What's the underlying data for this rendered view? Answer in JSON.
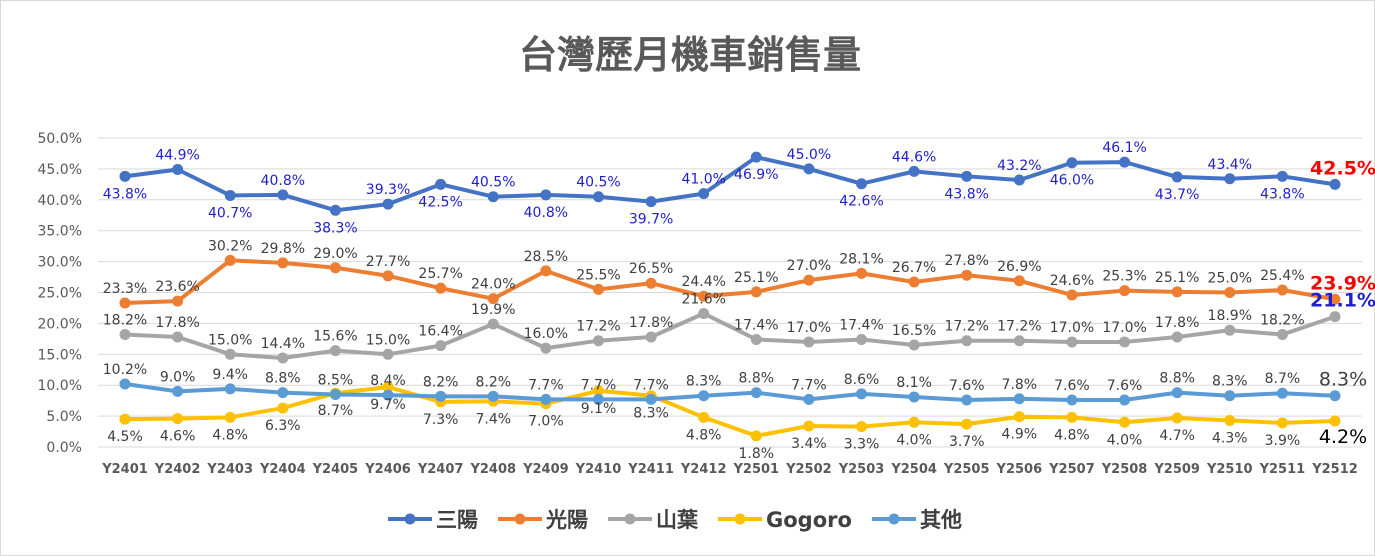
{
  "chart_data": {
    "type": "line",
    "title": "台灣歷月機車銷售量",
    "xlabel": "",
    "ylabel": "",
    "ylim": [
      0,
      50
    ],
    "yticks": [
      "0.0%",
      "5.0%",
      "10.0%",
      "15.0%",
      "20.0%",
      "25.0%",
      "30.0%",
      "35.0%",
      "40.0%",
      "45.0%",
      "50.0%"
    ],
    "grid": true,
    "legend": "bottom",
    "categories": [
      "Y2401",
      "Y2402",
      "Y2403",
      "Y2404",
      "Y2405",
      "Y2406",
      "Y2407",
      "Y2408",
      "Y2409",
      "Y2410",
      "Y2411",
      "Y2412",
      "Y2501",
      "Y2502",
      "Y2503",
      "Y2504",
      "Y2505",
      "Y2506",
      "Y2507",
      "Y2508",
      "Y2509",
      "Y2510",
      "Y2511",
      "Y2512"
    ],
    "series": [
      {
        "name": "三陽",
        "color": "#4472c4",
        "label_color": "#1f1fcc",
        "values": [
          43.8,
          44.9,
          40.7,
          40.8,
          38.3,
          39.3,
          42.5,
          40.5,
          40.8,
          40.5,
          39.7,
          41.0,
          46.9,
          45.0,
          42.6,
          44.6,
          43.8,
          43.2,
          46.0,
          46.1,
          43.7,
          43.4,
          43.8,
          42.5
        ],
        "last_label_color": "#ff0000"
      },
      {
        "name": "光陽",
        "color": "#ed7d31",
        "label_color": "#404040",
        "values": [
          23.3,
          23.6,
          30.2,
          29.8,
          29.0,
          27.7,
          25.7,
          24.0,
          28.5,
          25.5,
          26.5,
          24.4,
          25.1,
          27.0,
          28.1,
          26.7,
          27.8,
          26.9,
          24.6,
          25.3,
          25.1,
          25.0,
          25.4,
          23.9
        ],
        "last_label_color": "#ff0000"
      },
      {
        "name": "山葉",
        "color": "#a5a5a5",
        "label_color": "#404040",
        "values": [
          18.2,
          17.8,
          15.0,
          14.4,
          15.6,
          15.0,
          16.4,
          19.9,
          16.0,
          17.2,
          17.8,
          21.6,
          17.4,
          17.0,
          17.4,
          16.5,
          17.2,
          17.2,
          17.0,
          17.0,
          17.8,
          18.9,
          18.2,
          21.1
        ],
        "last_label_color": "#1f1fcc"
      },
      {
        "name": "Gogoro",
        "color": "#ffc000",
        "label_color": "#404040",
        "values": [
          4.5,
          4.6,
          4.8,
          6.3,
          8.7,
          9.7,
          7.3,
          7.4,
          7.0,
          9.1,
          8.3,
          4.8,
          1.8,
          3.4,
          3.3,
          4.0,
          3.7,
          4.9,
          4.8,
          4.0,
          4.7,
          4.3,
          3.9,
          4.2
        ],
        "last_label_color": "#000000"
      },
      {
        "name": "其他",
        "color": "#5b9bd5",
        "label_color": "#404040",
        "values": [
          10.2,
          9.0,
          9.4,
          8.8,
          8.5,
          8.4,
          8.2,
          8.2,
          7.7,
          7.7,
          7.7,
          8.3,
          8.8,
          7.7,
          8.6,
          8.1,
          7.6,
          7.8,
          7.6,
          7.6,
          8.8,
          8.3,
          8.7,
          8.3
        ],
        "last_label_color": "#404040"
      }
    ]
  }
}
